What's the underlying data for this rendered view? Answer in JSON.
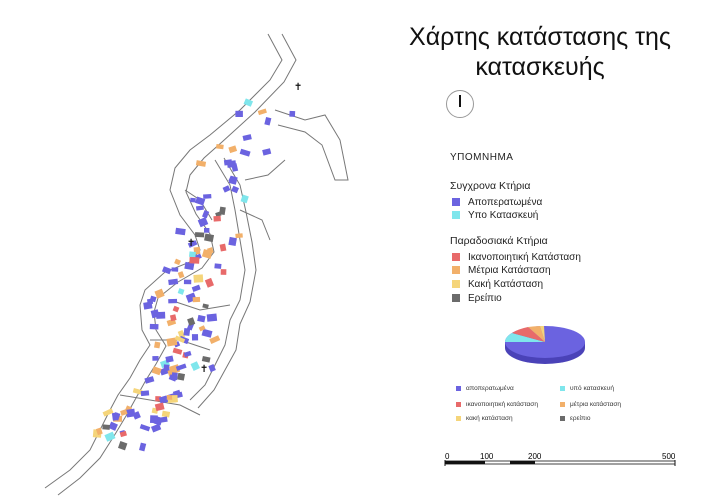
{
  "title_line1": "Χάρτης κατάστασης της",
  "title_line2": "κατασκευής",
  "legend": {
    "heading": "ΥΠΟΜΝΗΜΑ",
    "modern_title": "Συγχρονα Κτήρια",
    "modern_items": [
      {
        "label": "Αποπερατωμένα",
        "color": "#6b63e0"
      },
      {
        "label": "Υπο Κατασκευή",
        "color": "#7fe6ec"
      }
    ],
    "traditional_title": "Παραδοσιακά Κτήρια",
    "traditional_items": [
      {
        "label": "Ικανοποιητική Κατάσταση",
        "color": "#e86a6a"
      },
      {
        "label": "Μέτρια Κατάσταση",
        "color": "#f2b06a"
      },
      {
        "label": "Κακή Κατάσταση",
        "color": "#f5d57a"
      },
      {
        "label": "Ερείπιο",
        "color": "#6b6b6b"
      }
    ]
  },
  "pie_legend": [
    {
      "label": "αποπερατωμένα",
      "color": "#6b63e0"
    },
    {
      "label": "υπό κατασκευή",
      "color": "#7fe6ec"
    },
    {
      "label": "ικανοποιητική κατάσταση",
      "color": "#e86a6a"
    },
    {
      "label": "μέτρια κατάσταση",
      "color": "#f2b06a"
    },
    {
      "label": "κακή κατάσταση",
      "color": "#f5d57a"
    },
    {
      "label": "ερείπιο",
      "color": "#6b6b6b"
    }
  ],
  "scale": {
    "labels": [
      "0",
      "100",
      "200",
      "500"
    ]
  }
}
